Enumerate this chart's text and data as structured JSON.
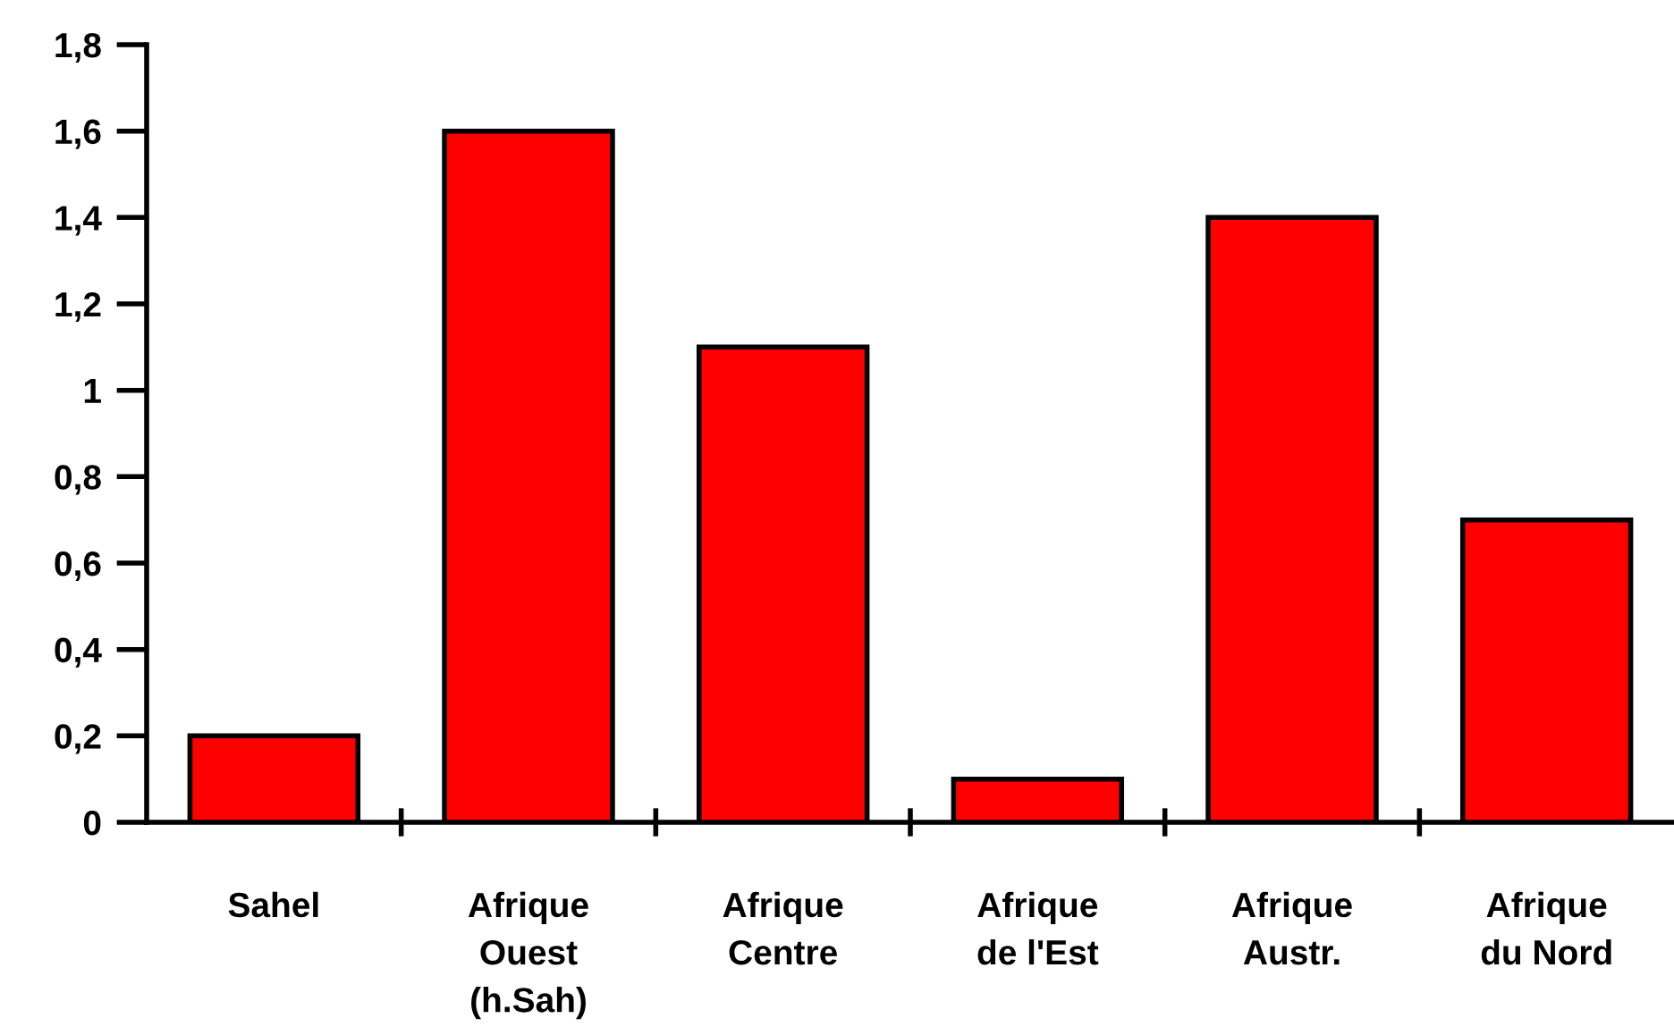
{
  "chart_data": {
    "type": "bar",
    "categories": [
      "Sahel",
      "Afrique\nOuest\n(h.Sah)",
      "Afrique\nCentre",
      "Afrique\nde l'Est",
      "Afrique\nAustr.",
      "Afrique\ndu Nord"
    ],
    "values": [
      0.2,
      1.6,
      1.1,
      0.1,
      1.4,
      0.7
    ],
    "color": "#ff0000",
    "ylim": [
      0,
      1.8
    ],
    "yticks": [
      0,
      {
        "value": 0.2,
        "label": "0,2"
      },
      {
        "value": 0.4,
        "label": "0,4"
      },
      {
        "value": 0.6,
        "label": "0,6"
      },
      {
        "value": 0.8,
        "label": "0,8"
      },
      1,
      {
        "value": 1.2,
        "label": "1,2"
      },
      {
        "value": 1.4,
        "label": "1,4"
      },
      {
        "value": 1.6,
        "label": "1,6"
      },
      {
        "value": 1.8,
        "label": "1,8"
      }
    ],
    "grid": false,
    "legend": false
  }
}
